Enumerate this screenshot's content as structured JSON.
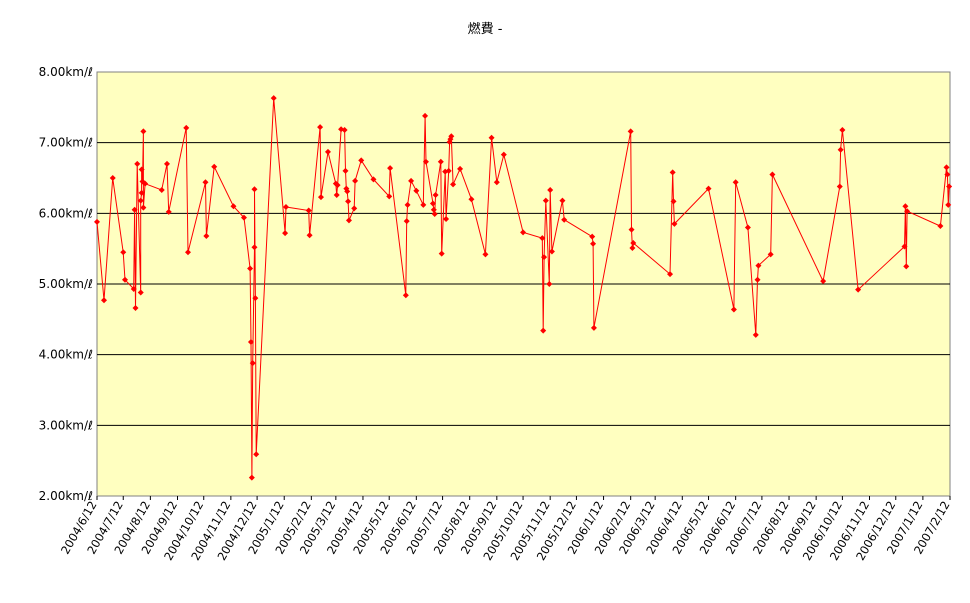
{
  "chart_data": {
    "type": "line",
    "title": "燃費 -",
    "xlabel": "",
    "ylabel": "",
    "x_ticks": [
      "2004/6/12",
      "2004/7/12",
      "2004/8/12",
      "2004/9/12",
      "2004/10/12",
      "2004/11/12",
      "2004/12/12",
      "2005/1/12",
      "2005/2/12",
      "2005/3/12",
      "2005/4/12",
      "2005/5/12",
      "2005/6/12",
      "2005/7/12",
      "2005/8/12",
      "2005/9/12",
      "2005/10/12",
      "2005/11/12",
      "2005/12/12",
      "2006/1/12",
      "2006/2/12",
      "2006/3/12",
      "2006/4/12",
      "2006/5/12",
      "2006/6/12",
      "2006/7/12",
      "2006/8/12",
      "2006/9/12",
      "2006/10/12",
      "2006/11/12",
      "2006/12/12",
      "2007/1/12",
      "2007/2/12"
    ],
    "y_ticks": [
      "2.00km/ℓ",
      "3.00km/ℓ",
      "4.00km/ℓ",
      "5.00km/ℓ",
      "6.00km/ℓ",
      "7.00km/ℓ",
      "8.00km/ℓ"
    ],
    "ylim": [
      2,
      8
    ],
    "xlim": [
      "2004/6/12",
      "2007/2/12"
    ],
    "grid": true,
    "legend": "none",
    "colors": {
      "series": "#ff0000",
      "plot_bg": "#ffffc0",
      "grid": "#000000"
    },
    "series": [
      {
        "points": [
          [
            "2004/6/12",
            5.88
          ],
          [
            "2004/6/20",
            4.77
          ],
          [
            "2004/6/30",
            6.5
          ],
          [
            "2004/7/12",
            5.45
          ],
          [
            "2004/7/14",
            5.06
          ],
          [
            "2004/7/24",
            4.93
          ],
          [
            "2004/7/25",
            6.05
          ],
          [
            "2004/7/26",
            4.66
          ],
          [
            "2004/7/28",
            6.7
          ],
          [
            "2004/8/1",
            4.88
          ],
          [
            "2004/8/1",
            6.18
          ],
          [
            "2004/8/2",
            6.29
          ],
          [
            "2004/8/2",
            6.62
          ],
          [
            "2004/8/3",
            6.45
          ],
          [
            "2004/8/4",
            7.16
          ],
          [
            "2004/8/4",
            6.08
          ],
          [
            "2004/8/6",
            6.42
          ],
          [
            "2004/8/25",
            6.33
          ],
          [
            "2004/8/31",
            6.7
          ],
          [
            "2004/9/2",
            6.02
          ],
          [
            "2004/9/22",
            7.21
          ],
          [
            "2004/9/24",
            5.45
          ],
          [
            "2004/10/14",
            6.44
          ],
          [
            "2004/10/15",
            5.68
          ],
          [
            "2004/10/24",
            6.66
          ],
          [
            "2004/11/15",
            6.1
          ],
          [
            "2004/11/27",
            5.94
          ],
          [
            "2004/12/4",
            5.22
          ],
          [
            "2004/12/5",
            4.18
          ],
          [
            "2004/12/6",
            2.26
          ],
          [
            "2004/12/7",
            3.88
          ],
          [
            "2004/12/9",
            5.52
          ],
          [
            "2004/12/9",
            6.34
          ],
          [
            "2004/12/10",
            4.8
          ],
          [
            "2004/12/11",
            2.59
          ],
          [
            "2004/12/31",
            7.63
          ],
          [
            "2005/1/13",
            5.72
          ],
          [
            "2005/1/14",
            6.09
          ],
          [
            "2005/2/9",
            6.04
          ],
          [
            "2005/2/10",
            5.69
          ],
          [
            "2005/2/22",
            7.22
          ],
          [
            "2005/2/23",
            6.23
          ],
          [
            "2005/3/3",
            6.87
          ],
          [
            "2005/3/12",
            6.42
          ],
          [
            "2005/3/13",
            6.26
          ],
          [
            "2005/3/14",
            6.4
          ],
          [
            "2005/3/18",
            7.19
          ],
          [
            "2005/3/22",
            7.18
          ],
          [
            "2005/3/23",
            6.6
          ],
          [
            "2005/3/24",
            6.35
          ],
          [
            "2005/3/25",
            6.31
          ],
          [
            "2005/3/26",
            6.17
          ],
          [
            "2005/3/27",
            5.9
          ],
          [
            "2005/4/2",
            6.07
          ],
          [
            "2005/4/3",
            6.46
          ],
          [
            "2005/4/10",
            6.75
          ],
          [
            "2005/4/24",
            6.48
          ],
          [
            "2005/5/12",
            6.24
          ],
          [
            "2005/5/13",
            6.64
          ],
          [
            "2005/5/31",
            4.84
          ],
          [
            "2005/6/1",
            5.89
          ],
          [
            "2005/6/2",
            6.12
          ],
          [
            "2005/6/6",
            6.46
          ],
          [
            "2005/6/12",
            6.32
          ],
          [
            "2005/6/20",
            6.12
          ],
          [
            "2005/6/22",
            7.38
          ],
          [
            "2005/6/23",
            6.73
          ],
          [
            "2005/7/1",
            6.14
          ],
          [
            "2005/7/2",
            6.05
          ],
          [
            "2005/7/3",
            5.99
          ],
          [
            "2005/7/4",
            6.26
          ],
          [
            "2005/7/10",
            6.73
          ],
          [
            "2005/7/11",
            5.43
          ],
          [
            "2005/7/15",
            6.59
          ],
          [
            "2005/7/16",
            5.92
          ],
          [
            "2005/7/19",
            6.6
          ],
          [
            "2005/7/20",
            7.01
          ],
          [
            "2005/7/21",
            7.05
          ],
          [
            "2005/7/22",
            7.09
          ],
          [
            "2005/7/24",
            6.41
          ],
          [
            "2005/8/1",
            6.63
          ],
          [
            "2005/8/14",
            6.2
          ],
          [
            "2005/8/30",
            5.42
          ],
          [
            "2005/9/6",
            7.07
          ],
          [
            "2005/9/12",
            6.44
          ],
          [
            "2005/9/20",
            6.83
          ],
          [
            "2005/10/12",
            5.73
          ],
          [
            "2005/11/3",
            5.65
          ],
          [
            "2005/11/4",
            4.34
          ],
          [
            "2005/11/5",
            5.38
          ],
          [
            "2005/11/7",
            6.18
          ],
          [
            "2005/11/11",
            5.0
          ],
          [
            "2005/11/12",
            6.33
          ],
          [
            "2005/11/14",
            5.46
          ],
          [
            "2005/11/26",
            6.18
          ],
          [
            "2005/11/28",
            5.91
          ],
          [
            "2005/12/30",
            5.67
          ],
          [
            "2005/12/31",
            5.57
          ],
          [
            "2006/1/1",
            4.38
          ],
          [
            "2006/2/12",
            7.16
          ],
          [
            "2006/2/13",
            5.77
          ],
          [
            "2006/2/14",
            5.51
          ],
          [
            "2006/2/15",
            5.58
          ],
          [
            "2006/3/29",
            5.14
          ],
          [
            "2006/4/1",
            6.58
          ],
          [
            "2006/4/2",
            6.17
          ],
          [
            "2006/4/3",
            5.85
          ],
          [
            "2006/5/12",
            6.35
          ],
          [
            "2006/6/10",
            4.64
          ],
          [
            "2006/6/12",
            6.44
          ],
          [
            "2006/6/26",
            5.8
          ],
          [
            "2006/7/5",
            4.28
          ],
          [
            "2006/7/7",
            5.06
          ],
          [
            "2006/7/8",
            5.26
          ],
          [
            "2006/7/22",
            5.42
          ],
          [
            "2006/7/24",
            6.55
          ],
          [
            "2006/9/20",
            5.04
          ],
          [
            "2006/10/9",
            6.38
          ],
          [
            "2006/10/10",
            6.9
          ],
          [
            "2006/10/12",
            7.18
          ],
          [
            "2006/10/30",
            4.92
          ],
          [
            "2006/12/22",
            5.53
          ],
          [
            "2006/12/23",
            6.1
          ],
          [
            "2006/12/24",
            5.25
          ],
          [
            "2006/12/25",
            6.03
          ],
          [
            "2007/2/1",
            5.82
          ],
          [
            "2007/2/8",
            6.65
          ],
          [
            "2007/2/9",
            6.55
          ],
          [
            "2007/2/10",
            6.12
          ],
          [
            "2007/2/11",
            6.38
          ]
        ]
      }
    ]
  }
}
